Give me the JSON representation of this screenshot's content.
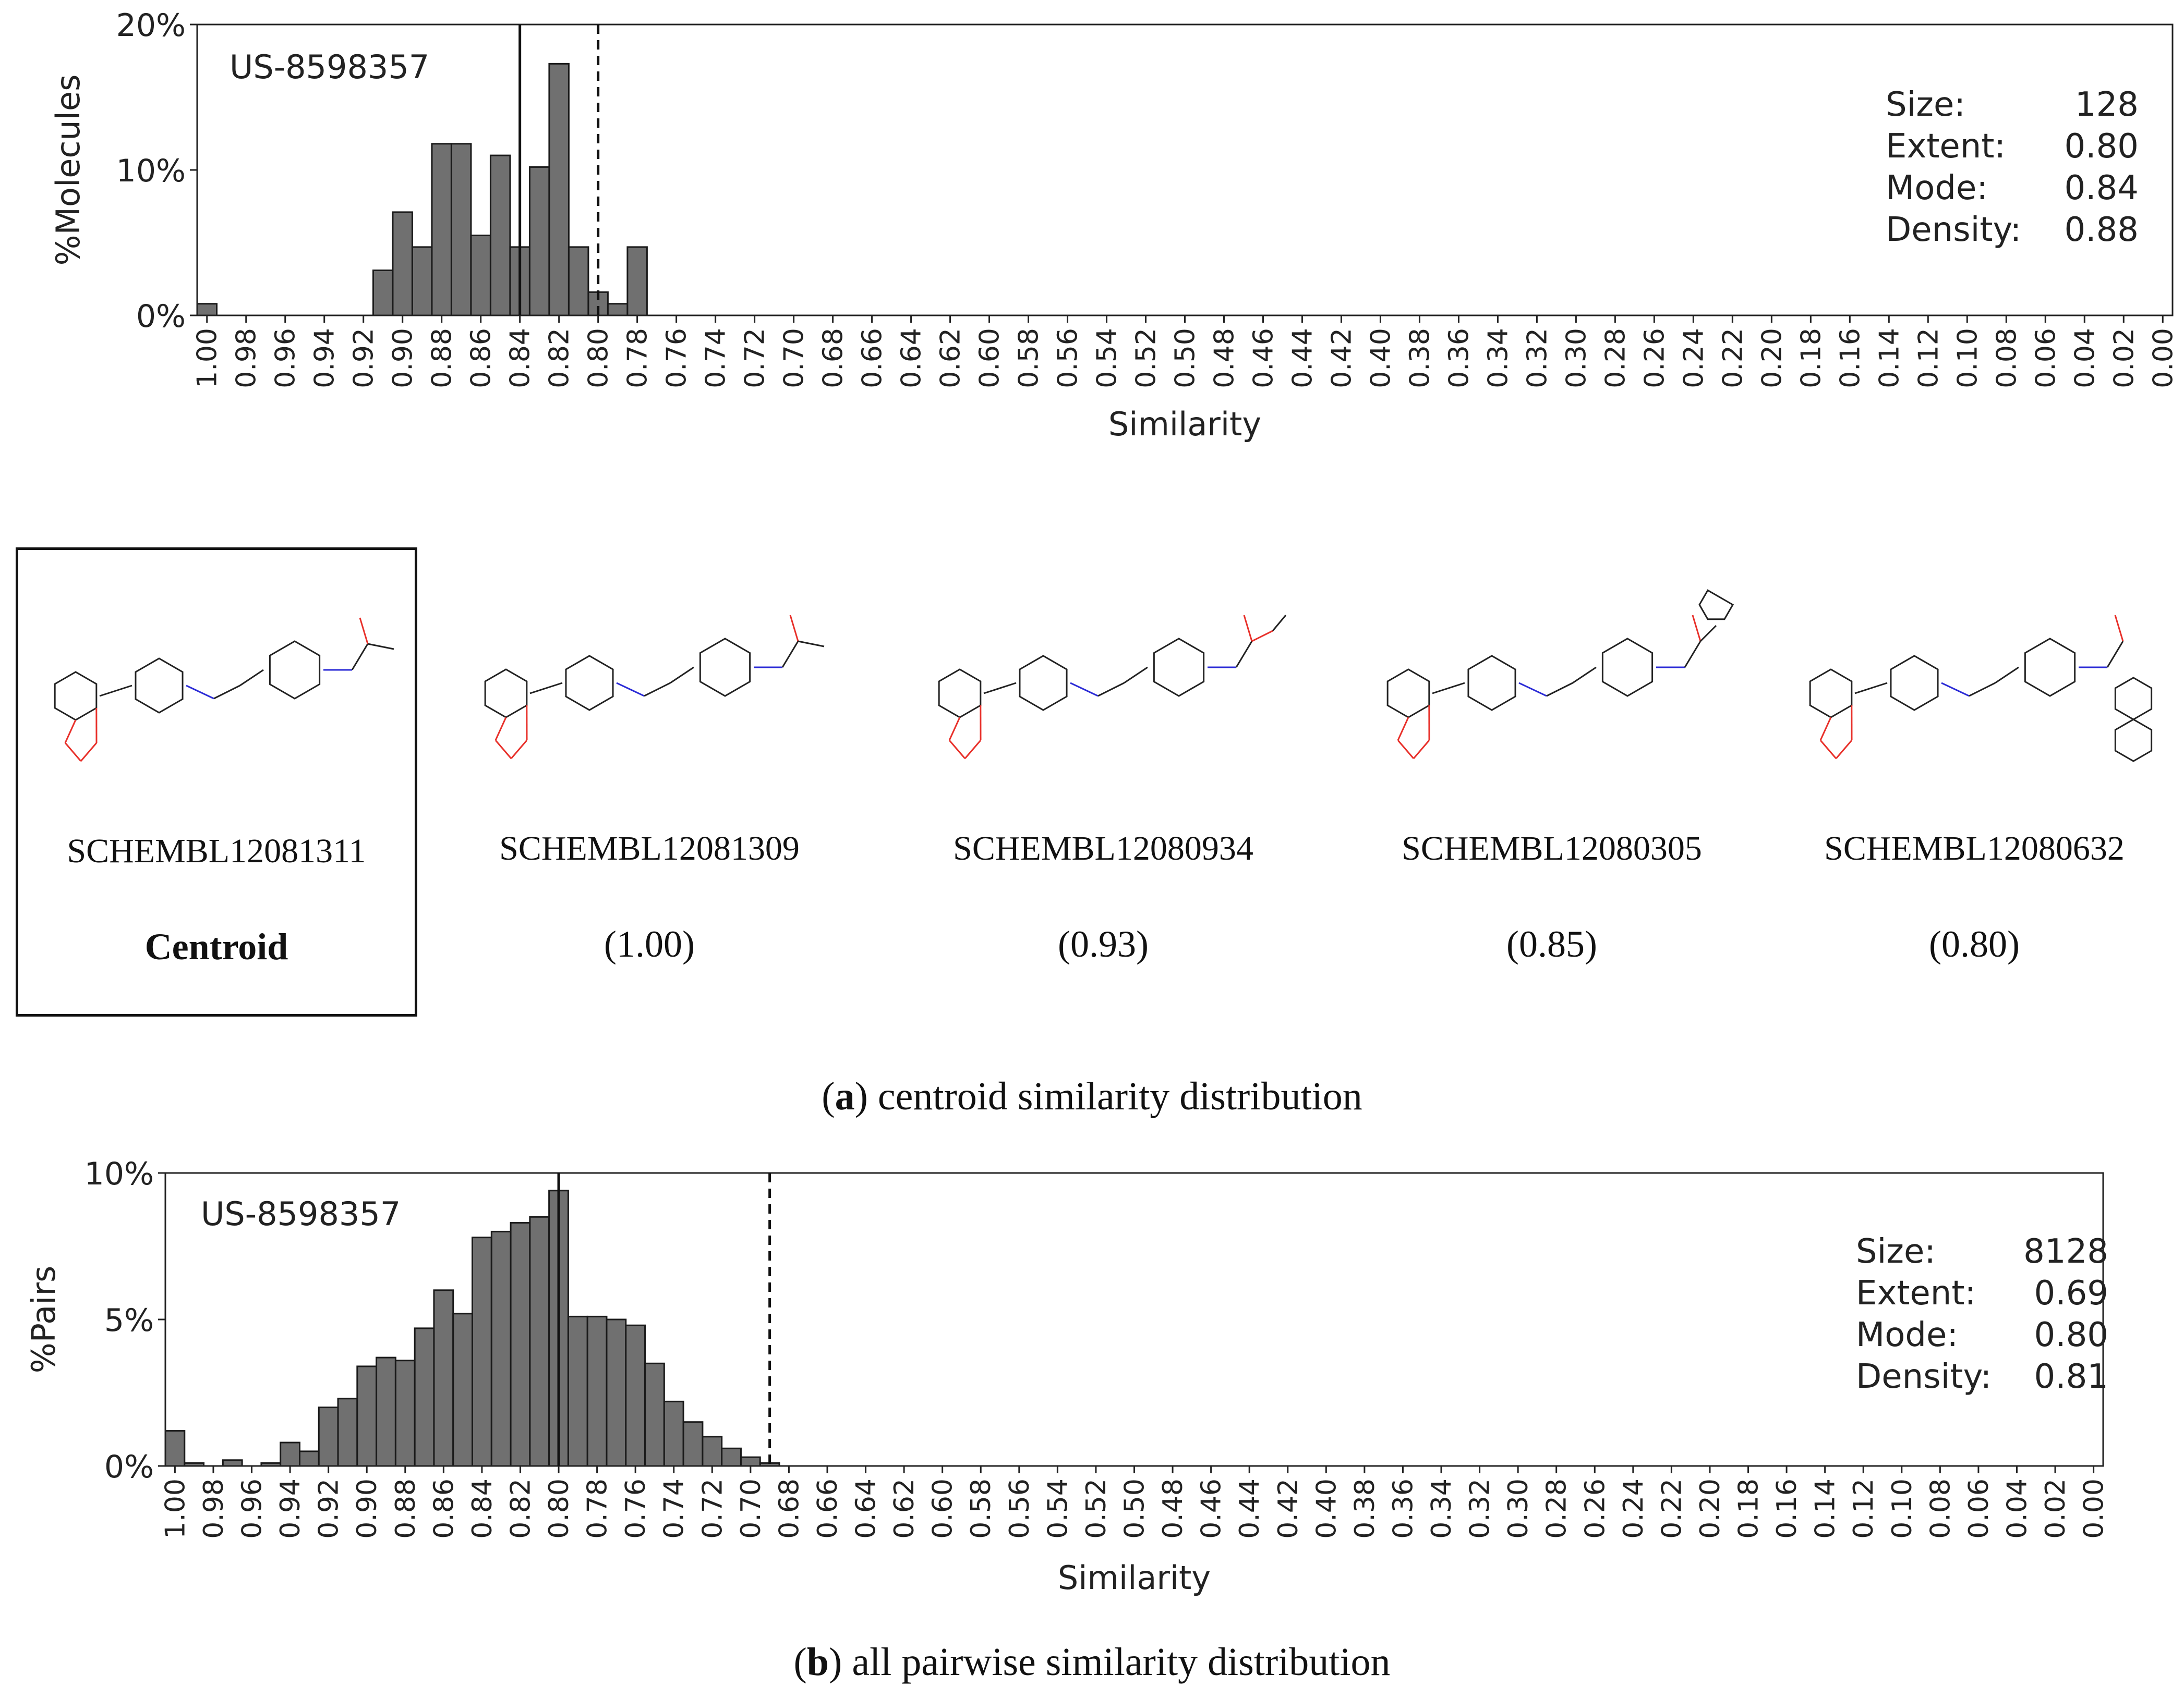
{
  "chart_data": [
    {
      "type": "bar",
      "panel_id": "a",
      "ylabel": "%Molecules",
      "xlabel": "Similarity",
      "dataset_label": "US-8598357",
      "ylim": [
        0,
        20
      ],
      "yticks": [
        "0%",
        "10%",
        "20%"
      ],
      "ytick_values": [
        0,
        10,
        20
      ],
      "x_tick_labels": [
        "1.00",
        "0.98",
        "0.96",
        "0.94",
        "0.92",
        "0.90",
        "0.88",
        "0.86",
        "0.84",
        "0.82",
        "0.80",
        "0.78",
        "0.76",
        "0.74",
        "0.72",
        "0.70",
        "0.68",
        "0.66",
        "0.64",
        "0.62",
        "0.60",
        "0.58",
        "0.56",
        "0.54",
        "0.52",
        "0.50",
        "0.48",
        "0.46",
        "0.44",
        "0.42",
        "0.40",
        "0.38",
        "0.36",
        "0.34",
        "0.32",
        "0.30",
        "0.28",
        "0.26",
        "0.24",
        "0.22",
        "0.20",
        "0.18",
        "0.16",
        "0.14",
        "0.12",
        "0.10",
        "0.08",
        "0.06",
        "0.04",
        "0.02",
        "0.00"
      ],
      "bin_width": 0.01,
      "values": [
        0.8,
        0,
        0,
        0,
        0,
        0,
        0,
        0,
        0,
        3.1,
        7.1,
        4.7,
        11.8,
        11.8,
        5.5,
        11.0,
        4.7,
        10.2,
        17.3,
        4.7,
        1.6,
        0.8,
        4.7
      ],
      "solid_line": 0.84,
      "dashed_line": 0.8,
      "stats": [
        {
          "label": "Size:",
          "value": "128"
        },
        {
          "label": "Extent:",
          "value": "0.80"
        },
        {
          "label": "Mode:",
          "value": "0.84"
        },
        {
          "label": "Density:",
          "value": "0.88"
        }
      ]
    },
    {
      "type": "bar",
      "panel_id": "b",
      "ylabel": "%Pairs",
      "xlabel": "Similarity",
      "dataset_label": "US-8598357",
      "ylim": [
        0,
        10
      ],
      "yticks": [
        "0%",
        "5%",
        "10%"
      ],
      "ytick_values": [
        0,
        5,
        10
      ],
      "x_tick_labels": [
        "1.00",
        "0.98",
        "0.96",
        "0.94",
        "0.92",
        "0.90",
        "0.88",
        "0.86",
        "0.84",
        "0.82",
        "0.80",
        "0.78",
        "0.76",
        "0.74",
        "0.72",
        "0.70",
        "0.68",
        "0.66",
        "0.64",
        "0.62",
        "0.60",
        "0.58",
        "0.56",
        "0.54",
        "0.52",
        "0.50",
        "0.48",
        "0.46",
        "0.44",
        "0.42",
        "0.40",
        "0.38",
        "0.36",
        "0.34",
        "0.32",
        "0.30",
        "0.28",
        "0.26",
        "0.24",
        "0.22",
        "0.20",
        "0.18",
        "0.16",
        "0.14",
        "0.12",
        "0.10",
        "0.08",
        "0.06",
        "0.04",
        "0.02",
        "0.00"
      ],
      "bin_width": 0.01,
      "values": [
        1.2,
        0.1,
        0,
        0.2,
        0,
        0.1,
        0.8,
        0.5,
        2.0,
        2.3,
        3.4,
        3.7,
        3.6,
        4.7,
        6.0,
        5.2,
        7.8,
        8.0,
        8.3,
        8.5,
        9.4,
        5.1,
        5.1,
        5.0,
        4.8,
        3.5,
        2.2,
        1.5,
        1.0,
        0.6,
        0.3,
        0.1
      ],
      "solid_line": 0.8,
      "dashed_line": 0.69,
      "stats": [
        {
          "label": "Size:",
          "value": "8128"
        },
        {
          "label": "Extent:",
          "value": "0.69"
        },
        {
          "label": "Mode:",
          "value": "0.80"
        },
        {
          "label": "Density:",
          "value": "0.81"
        }
      ]
    }
  ],
  "molecules": [
    {
      "id": "SCHEMBL12081311",
      "score": "Centroid",
      "is_centroid": true
    },
    {
      "id": "SCHEMBL12081309",
      "score": "(1.00)",
      "is_centroid": false
    },
    {
      "id": "SCHEMBL12080934",
      "score": "(0.93)",
      "is_centroid": false
    },
    {
      "id": "SCHEMBL12080305",
      "score": "(0.85)",
      "is_centroid": false
    },
    {
      "id": "SCHEMBL12080632",
      "score": "(0.80)",
      "is_centroid": false
    }
  ],
  "captions": {
    "a_letter": "a",
    "a_text": ") centroid similarity distribution",
    "b_letter": "b",
    "b_text": ") all pairwise similarity distribution"
  },
  "colors": {
    "bar_fill": "#707070",
    "bar_stroke": "#1a1a1a",
    "axis": "#222222",
    "oxygen": "#e8302a",
    "nitrogen": "#2b2bd6",
    "bond": "#222222"
  }
}
